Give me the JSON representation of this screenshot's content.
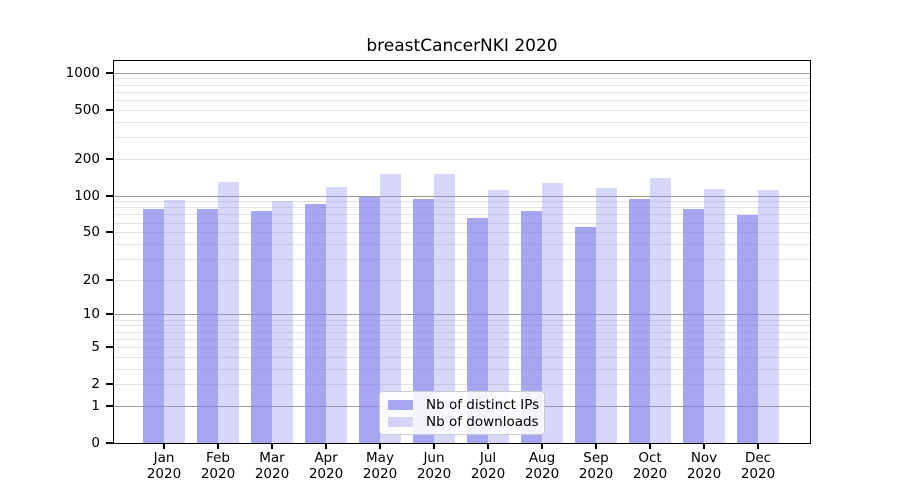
{
  "title": "breastCancerNKI 2020",
  "chart_data": {
    "type": "bar",
    "title": "breastCancerNKI 2020",
    "categories": [
      "Jan 2020",
      "Feb 2020",
      "Mar 2020",
      "Apr 2020",
      "May 2020",
      "Jun 2020",
      "Jul 2020",
      "Aug 2020",
      "Sep 2020",
      "Oct 2020",
      "Nov 2020",
      "Dec 2020"
    ],
    "months": [
      "Jan",
      "Feb",
      "Mar",
      "Apr",
      "May",
      "Jun",
      "Jul",
      "Aug",
      "Sep",
      "Oct",
      "Nov",
      "Dec"
    ],
    "year": "2020",
    "series": [
      {
        "name": "Nb of distinct IPs",
        "key": "distinct-ips",
        "fill_rgba": "rgba(130,130,235,0.70)",
        "fill_hex_on_white": "#A8A8F1",
        "values": [
          78,
          78,
          75,
          85,
          98,
          93,
          66,
          75,
          55,
          93,
          78,
          69
        ]
      },
      {
        "name": "Nb of downloads",
        "key": "downloads",
        "fill_rgba": "rgba(130,130,235,0.32)",
        "fill_hex_on_white": "#D7D7F9",
        "values": [
          92,
          130,
          91,
          118,
          151,
          150,
          112,
          127,
          115,
          140,
          113,
          110
        ]
      }
    ],
    "yscale": "log10(1+v)",
    "ylim": [
      0,
      1270
    ],
    "yticks": [
      0,
      1,
      2,
      5,
      10,
      20,
      50,
      100,
      200,
      500,
      1000
    ],
    "ytick_labels": [
      "0",
      "1",
      "2",
      "5",
      "10",
      "20",
      "50",
      "100",
      "200",
      "500",
      "1000"
    ],
    "major_grid_values": [
      1,
      10,
      100,
      1000
    ],
    "minor_grid_values": [
      2,
      3,
      4,
      5,
      6,
      7,
      8,
      9,
      20,
      30,
      40,
      50,
      60,
      70,
      80,
      90,
      200,
      300,
      400,
      500,
      600,
      700,
      800,
      900
    ],
    "grid": true,
    "legend_position": "lower-center"
  },
  "legend": {
    "items": [
      {
        "label": "Nb of distinct IPs"
      },
      {
        "label": "Nb of downloads"
      }
    ]
  },
  "colors": {
    "major_grid": "#9b9b9b",
    "minor_grid": "#e4e4e4",
    "spine": "#000000",
    "text": "#000000",
    "legend_border": "#cccccc",
    "background": "#ffffff"
  }
}
